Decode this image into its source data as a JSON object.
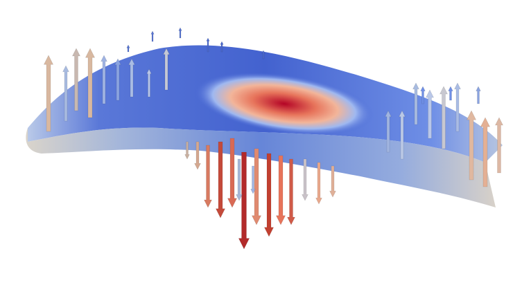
{
  "scene": {
    "kind": "3d-visualization",
    "subject": "deformed-slab-with-vector-glyphs",
    "colormap": [
      "#3b4cc0",
      "#6c8ff0",
      "#aac7fd",
      "#dddddd",
      "#f7b89c",
      "#e7745b",
      "#b40426"
    ],
    "background": "#ffffff"
  }
}
